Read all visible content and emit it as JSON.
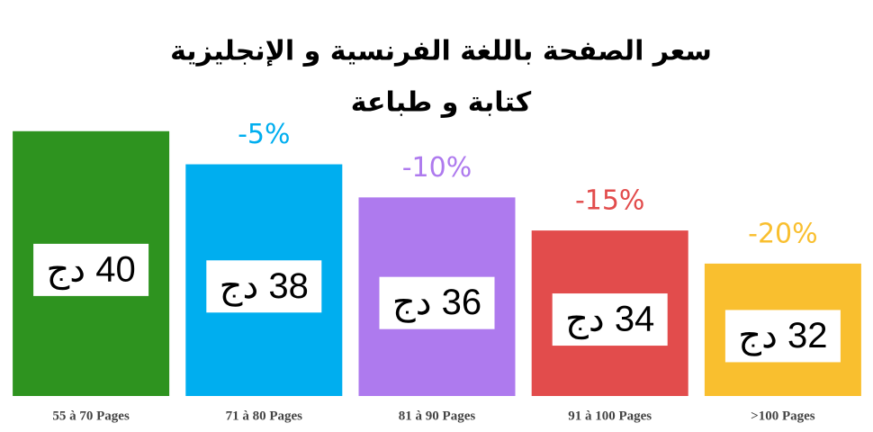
{
  "chart_data": {
    "type": "bar",
    "title": "سعر الصفحة باللغة الفرنسية و الإنجليزية",
    "subtitle": "كتابة و طباعة",
    "categories": [
      "55 à 70 Pages",
      "71 à 80 Pages",
      "81 à 90 Pages",
      "91 à 100 Pages",
      ">100 Pages"
    ],
    "values": [
      40,
      38,
      36,
      34,
      32
    ],
    "value_labels": [
      "40 دج",
      "38 دج",
      "36 دج",
      "34 دج",
      "32 دج"
    ],
    "annotations": [
      null,
      "-5%",
      "-10%",
      "-15%",
      "-20%"
    ],
    "colors": [
      "#2e931f",
      "#00aeef",
      "#ae7aee",
      "#e24c4c",
      "#f9bf2f"
    ],
    "ylim": [
      24,
      42
    ]
  }
}
